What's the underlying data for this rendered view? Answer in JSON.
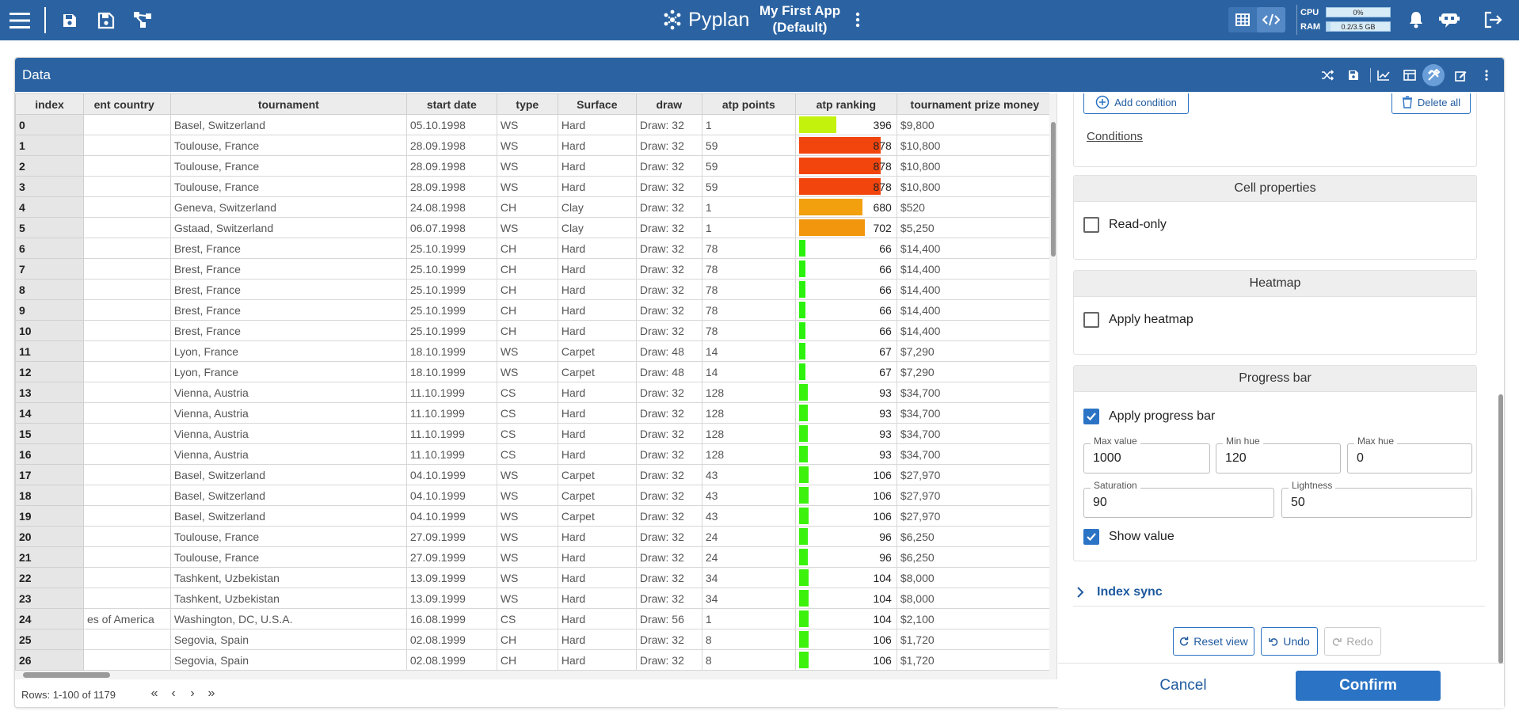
{
  "app": {
    "logo": "Pyplan",
    "title_line1": "My First App",
    "title_line2": "(Default)",
    "cpu_label": "CPU",
    "cpu_value": "0%",
    "cpu_fraction": 0.0,
    "ram_label": "RAM",
    "ram_value": "0.2/3.5 GB",
    "ram_fraction": 0.06
  },
  "card": {
    "title": "Data"
  },
  "table": {
    "columns": [
      "index",
      "ent country",
      "tournament",
      "start date",
      "type",
      "Surface",
      "draw",
      "atp points",
      "atp ranking",
      "tournament prize money"
    ],
    "rows": [
      [
        "0",
        "",
        "Basel, Switzerland",
        "05.10.1998",
        "WS",
        "Hard",
        "Draw: 32",
        "1",
        "396",
        "$9,800"
      ],
      [
        "1",
        "",
        "Toulouse, France",
        "28.09.1998",
        "WS",
        "Hard",
        "Draw: 32",
        "59",
        "878",
        "$10,800"
      ],
      [
        "2",
        "",
        "Toulouse, France",
        "28.09.1998",
        "WS",
        "Hard",
        "Draw: 32",
        "59",
        "878",
        "$10,800"
      ],
      [
        "3",
        "",
        "Toulouse, France",
        "28.09.1998",
        "WS",
        "Hard",
        "Draw: 32",
        "59",
        "878",
        "$10,800"
      ],
      [
        "4",
        "",
        "Geneva, Switzerland",
        "24.08.1998",
        "CH",
        "Clay",
        "Draw: 32",
        "1",
        "680",
        "$520"
      ],
      [
        "5",
        "",
        "Gstaad, Switzerland",
        "06.07.1998",
        "WS",
        "Clay",
        "Draw: 32",
        "1",
        "702",
        "$5,250"
      ],
      [
        "6",
        "",
        "Brest, France",
        "25.10.1999",
        "CH",
        "Hard",
        "Draw: 32",
        "78",
        "66",
        "$14,400"
      ],
      [
        "7",
        "",
        "Brest, France",
        "25.10.1999",
        "CH",
        "Hard",
        "Draw: 32",
        "78",
        "66",
        "$14,400"
      ],
      [
        "8",
        "",
        "Brest, France",
        "25.10.1999",
        "CH",
        "Hard",
        "Draw: 32",
        "78",
        "66",
        "$14,400"
      ],
      [
        "9",
        "",
        "Brest, France",
        "25.10.1999",
        "CH",
        "Hard",
        "Draw: 32",
        "78",
        "66",
        "$14,400"
      ],
      [
        "10",
        "",
        "Brest, France",
        "25.10.1999",
        "CH",
        "Hard",
        "Draw: 32",
        "78",
        "66",
        "$14,400"
      ],
      [
        "11",
        "",
        "Lyon, France",
        "18.10.1999",
        "WS",
        "Carpet",
        "Draw: 48",
        "14",
        "67",
        "$7,290"
      ],
      [
        "12",
        "",
        "Lyon, France",
        "18.10.1999",
        "WS",
        "Carpet",
        "Draw: 48",
        "14",
        "67",
        "$7,290"
      ],
      [
        "13",
        "",
        "Vienna, Austria",
        "11.10.1999",
        "CS",
        "Hard",
        "Draw: 32",
        "128",
        "93",
        "$34,700"
      ],
      [
        "14",
        "",
        "Vienna, Austria",
        "11.10.1999",
        "CS",
        "Hard",
        "Draw: 32",
        "128",
        "93",
        "$34,700"
      ],
      [
        "15",
        "",
        "Vienna, Austria",
        "11.10.1999",
        "CS",
        "Hard",
        "Draw: 32",
        "128",
        "93",
        "$34,700"
      ],
      [
        "16",
        "",
        "Vienna, Austria",
        "11.10.1999",
        "CS",
        "Hard",
        "Draw: 32",
        "128",
        "93",
        "$34,700"
      ],
      [
        "17",
        "",
        "Basel, Switzerland",
        "04.10.1999",
        "WS",
        "Carpet",
        "Draw: 32",
        "43",
        "106",
        "$27,970"
      ],
      [
        "18",
        "",
        "Basel, Switzerland",
        "04.10.1999",
        "WS",
        "Carpet",
        "Draw: 32",
        "43",
        "106",
        "$27,970"
      ],
      [
        "19",
        "",
        "Basel, Switzerland",
        "04.10.1999",
        "WS",
        "Carpet",
        "Draw: 32",
        "43",
        "106",
        "$27,970"
      ],
      [
        "20",
        "",
        "Toulouse, France",
        "27.09.1999",
        "WS",
        "Hard",
        "Draw: 32",
        "24",
        "96",
        "$6,250"
      ],
      [
        "21",
        "",
        "Toulouse, France",
        "27.09.1999",
        "WS",
        "Hard",
        "Draw: 32",
        "24",
        "96",
        "$6,250"
      ],
      [
        "22",
        "",
        "Tashkent, Uzbekistan",
        "13.09.1999",
        "WS",
        "Hard",
        "Draw: 32",
        "34",
        "104",
        "$8,000"
      ],
      [
        "23",
        "",
        "Tashkent, Uzbekistan",
        "13.09.1999",
        "WS",
        "Hard",
        "Draw: 32",
        "34",
        "104",
        "$8,000"
      ],
      [
        "24",
        "es of America",
        "Washington, DC, U.S.A.",
        "16.08.1999",
        "CS",
        "Hard",
        "Draw: 56",
        "1",
        "104",
        "$2,100"
      ],
      [
        "25",
        "",
        "Segovia, Spain",
        "02.08.1999",
        "CH",
        "Hard",
        "Draw: 32",
        "8",
        "106",
        "$1,720"
      ],
      [
        "26",
        "",
        "Segovia, Spain",
        "02.08.1999",
        "CH",
        "Hard",
        "Draw: 32",
        "8",
        "106",
        "$1,720"
      ]
    ],
    "rows_info": "Rows: 1-100 of 1179"
  },
  "panel": {
    "add_condition": "Add condition",
    "delete_all": "Delete all",
    "conditions_link": "Conditions",
    "cell_properties": {
      "title": "Cell properties",
      "read_only": "Read-only",
      "read_only_checked": false
    },
    "heatmap": {
      "title": "Heatmap",
      "apply": "Apply heatmap",
      "checked": false
    },
    "progress_bar": {
      "title": "Progress bar",
      "apply": "Apply progress bar",
      "checked": true,
      "max_value_label": "Max value",
      "max_value": "1000",
      "min_hue_label": "Min hue",
      "min_hue": "120",
      "max_hue_label": "Max hue",
      "max_hue": "0",
      "saturation_label": "Saturation",
      "saturation": "90",
      "lightness_label": "Lightness",
      "lightness": "50",
      "show_value": "Show value",
      "show_value_checked": true
    },
    "index_sync": "Index sync",
    "reset_view": "Reset view",
    "undo": "Undo",
    "redo": "Redo",
    "cancel": "Cancel",
    "confirm": "Confirm"
  },
  "colors": {
    "primary": "#2b63a2",
    "accent": "#2b73c4"
  }
}
